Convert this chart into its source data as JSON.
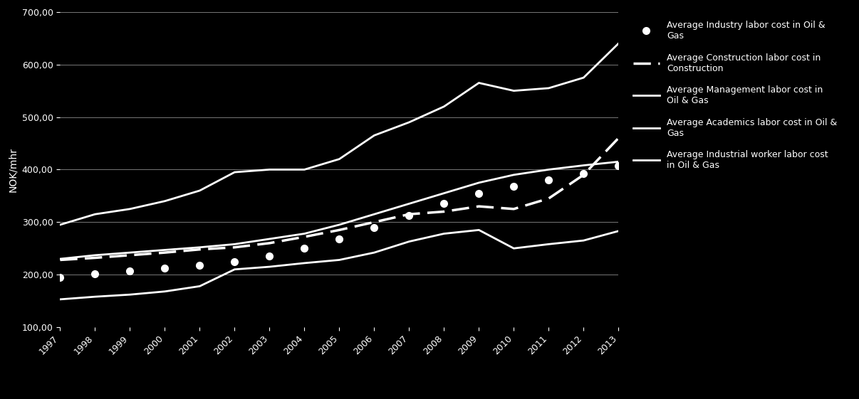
{
  "years": [
    1997,
    1998,
    1999,
    2000,
    2001,
    2002,
    2003,
    2004,
    2005,
    2006,
    2007,
    2008,
    2009,
    2010,
    2011,
    2012,
    2013
  ],
  "series": {
    "industry": {
      "label": "Average Industry labor cost in Oil &\nGas",
      "style": "dotted",
      "color": "#ffffff",
      "linewidth": 3.0,
      "values": [
        195,
        202,
        207,
        212,
        218,
        225,
        235,
        250,
        268,
        290,
        312,
        335,
        355,
        368,
        380,
        393,
        408
      ]
    },
    "construction": {
      "label": "Average Construction labor cost in\nConstruction",
      "style": "dashed",
      "color": "#ffffff",
      "linewidth": 2.5,
      "values": [
        228,
        232,
        237,
        242,
        248,
        252,
        260,
        272,
        285,
        300,
        315,
        320,
        330,
        325,
        345,
        390,
        460
      ]
    },
    "management": {
      "label": "Average Management labor cost in\nOil & Gas",
      "style": "solid",
      "color": "#ffffff",
      "linewidth": 2.0,
      "values": [
        295,
        315,
        325,
        340,
        360,
        395,
        400,
        400,
        420,
        465,
        490,
        520,
        565,
        550,
        555,
        575,
        640
      ]
    },
    "academics": {
      "label": "Average Academics labor cost in Oil &\nGas",
      "style": "solid",
      "color": "#ffffff",
      "linewidth": 2.0,
      "values": [
        230,
        237,
        242,
        247,
        252,
        258,
        268,
        278,
        295,
        315,
        335,
        355,
        375,
        390,
        400,
        408,
        415
      ]
    },
    "industrial_worker": {
      "label": "Average Industrial worker labor cost\nin Oil & Gas",
      "style": "solid",
      "color": "#ffffff",
      "linewidth": 2.0,
      "values": [
        153,
        158,
        162,
        168,
        178,
        210,
        215,
        222,
        228,
        242,
        263,
        278,
        285,
        250,
        258,
        265,
        283
      ]
    }
  },
  "legend_order": [
    "industry",
    "construction",
    "management",
    "academics",
    "industrial_worker"
  ],
  "ylabel": "NOK/mhr",
  "ylim": [
    100,
    700
  ],
  "yticks": [
    100,
    200,
    300,
    400,
    500,
    600,
    700
  ],
  "background_color": "#000000",
  "text_color": "#ffffff",
  "grid_color": "#777777"
}
